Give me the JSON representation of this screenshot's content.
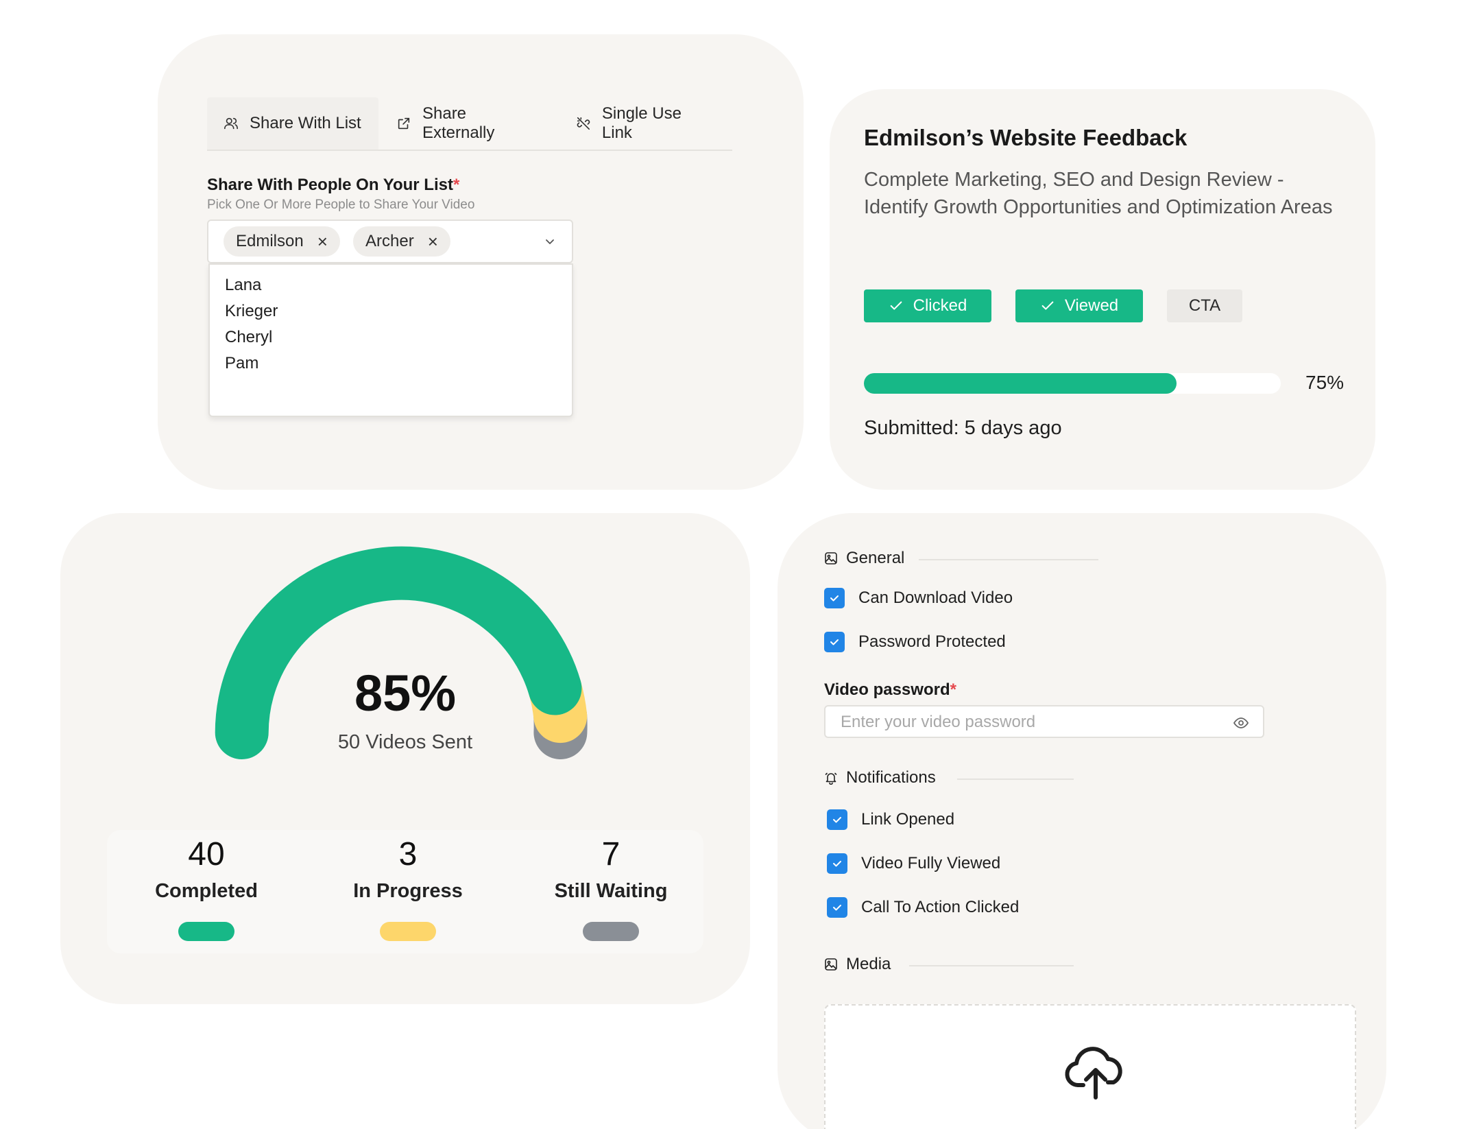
{
  "share": {
    "tabs": [
      {
        "label": "Share With List",
        "icon": "users-icon",
        "active": true
      },
      {
        "label": "Share Externally",
        "icon": "external-link-icon",
        "active": false
      },
      {
        "label": "Single Use Link",
        "icon": "link-broken-icon",
        "active": false
      }
    ],
    "field_title": "Share With People On Your List",
    "required_mark": "*",
    "field_hint": "Pick One Or More People to Share Your Video",
    "selected": [
      "Edmilson",
      "Archer"
    ],
    "options": [
      "Lana",
      "Krieger",
      "Cheryl",
      "Pam"
    ]
  },
  "feedback": {
    "title": "Edmilson’s Website Feedback",
    "description": "Complete Marketing, SEO and Design Review - Identify Growth Opportunities and Optimization Areas",
    "tags": [
      {
        "label": "Clicked",
        "checked": true
      },
      {
        "label": "Viewed",
        "checked": true
      },
      {
        "label": "CTA",
        "checked": false
      }
    ],
    "progress": 0.75,
    "progress_label": "75%",
    "submitted": "Submitted: 5 days ago"
  },
  "stats": {
    "percent": "85%",
    "subtitle": "50 Videos  Sent",
    "segments": [
      {
        "label": "Completed",
        "value": "40",
        "color": "#17b887"
      },
      {
        "label": "In Progress",
        "value": "3",
        "color": "#fdd66b"
      },
      {
        "label": "Still Waiting",
        "value": "7",
        "color": "#8a8f96"
      }
    ]
  },
  "settings": {
    "general": {
      "heading": "General",
      "icon": "image-icon",
      "items": [
        {
          "label": "Can Download Video",
          "checked": true
        },
        {
          "label": "Password Protected",
          "checked": true
        }
      ]
    },
    "password": {
      "label": "Video password",
      "required_mark": "*",
      "placeholder": "Enter your video password"
    },
    "notifications": {
      "heading": "Notifications",
      "icon": "bell-icon",
      "items": [
        {
          "label": "Link Opened",
          "checked": true
        },
        {
          "label": "Video Fully Viewed",
          "checked": true
        },
        {
          "label": "Call To Action Clicked",
          "checked": true
        }
      ]
    },
    "media": {
      "heading": "Media",
      "icon": "image-icon",
      "upload_icon": "cloud-upload-icon"
    }
  },
  "colors": {
    "accent_green": "#17b887",
    "accent_yellow": "#fdd66b",
    "accent_gray": "#8a8f96",
    "checkbox_blue": "#2185e6",
    "card_bg": "#f7f5f2"
  }
}
